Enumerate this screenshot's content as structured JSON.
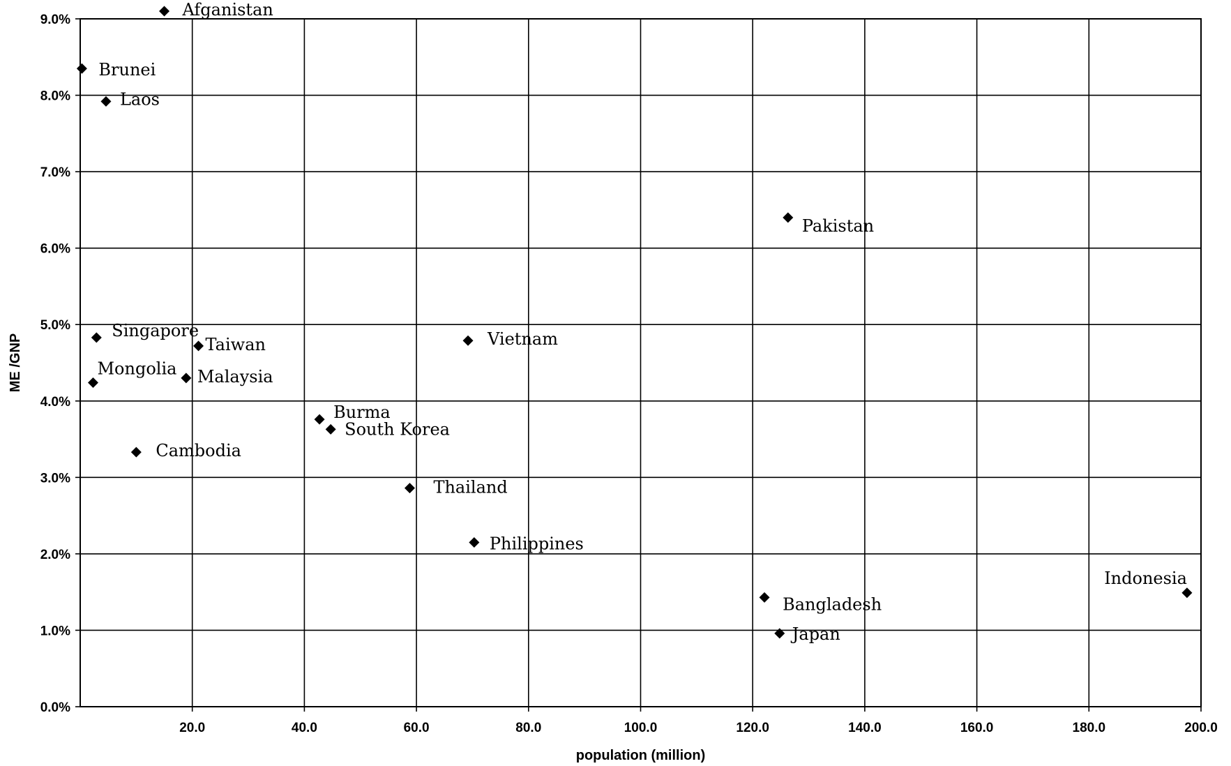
{
  "chart_data": {
    "type": "scatter",
    "title": "",
    "xlabel": "population (million)",
    "ylabel": "ME /GNP",
    "xlim": [
      0,
      200
    ],
    "ylim": [
      0,
      9
    ],
    "x_ticks": [
      "20.0",
      "40.0",
      "60.0",
      "80.0",
      "100.0",
      "120.0",
      "140.0",
      "160.0",
      "180.0",
      "200.0"
    ],
    "y_ticks": [
      "0.0%",
      "1.0%",
      "2.0%",
      "3.0%",
      "4.0%",
      "5.0%",
      "6.0%",
      "7.0%",
      "8.0%",
      "9.0%"
    ],
    "grid": true,
    "legend": "none",
    "marker": "diamond",
    "marker_color": "#000000",
    "series": [
      {
        "points": [
          {
            "label": "Afganistan",
            "x": 15.0,
            "y": 9.1
          },
          {
            "label": "Brunei",
            "x": 0.3,
            "y": 8.35
          },
          {
            "label": "Laos",
            "x": 4.6,
            "y": 7.92
          },
          {
            "label": "Pakistan",
            "x": 126.3,
            "y": 6.4
          },
          {
            "label": "Singapore",
            "x": 2.9,
            "y": 4.83
          },
          {
            "label": "Taiwan",
            "x": 21.1,
            "y": 4.72
          },
          {
            "label": "Vietnam",
            "x": 69.2,
            "y": 4.79
          },
          {
            "label": "Mongolia",
            "x": 2.3,
            "y": 4.24
          },
          {
            "label": "Malaysia",
            "x": 18.9,
            "y": 4.3
          },
          {
            "label": "Burma",
            "x": 42.7,
            "y": 3.76
          },
          {
            "label": "South Korea",
            "x": 44.7,
            "y": 3.63
          },
          {
            "label": "Cambodia",
            "x": 10.0,
            "y": 3.33
          },
          {
            "label": "Thailand",
            "x": 58.8,
            "y": 2.86
          },
          {
            "label": "Philippines",
            "x": 70.3,
            "y": 2.15
          },
          {
            "label": "Indonesia",
            "x": 197.5,
            "y": 1.49
          },
          {
            "label": "Bangladesh",
            "x": 122.1,
            "y": 1.43
          },
          {
            "label": "Japan",
            "x": 124.8,
            "y": 0.96
          }
        ]
      }
    ]
  }
}
